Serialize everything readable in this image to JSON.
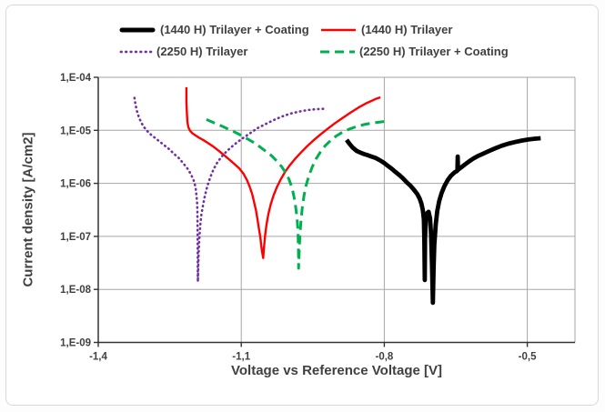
{
  "figure": {
    "background": "#ffffff",
    "border_color": "#d9d9d9",
    "gridline_color": "#a6a6a6",
    "axis_color": "#333333",
    "text_color": "#404040"
  },
  "chart_data": {
    "type": "line",
    "title": "",
    "xlabel": "Voltage vs Reference Voltage [V]",
    "ylabel": "Current density [A/cm2]",
    "x_axis": {
      "min": -1.4,
      "max": -0.4,
      "tick_values": [
        -1.4,
        -1.1,
        -0.8,
        -0.5
      ],
      "tick_labels": [
        "-1,4",
        "-1,1",
        "-0,8",
        "-0,5"
      ],
      "decimal_style": "comma"
    },
    "y_axis": {
      "scale": "log",
      "min": 1e-09,
      "max": 0.0001,
      "tick_values": [
        0.0001,
        1e-05,
        1e-06,
        1e-07,
        1e-08,
        1e-09
      ],
      "tick_labels": [
        "1,E-04",
        "1,E-05",
        "1,E-06",
        "1,E-07",
        "1,E-08",
        "1,E-09"
      ]
    },
    "grid": true,
    "legend_position": "top",
    "series": [
      {
        "name": "(1440 H) Trilayer + Coating",
        "color": "#000000",
        "dash": "solid",
        "width": 4.8,
        "points": [
          [
            -0.879,
            6.6e-06
          ],
          [
            -0.873,
            5.6e-06
          ],
          [
            -0.866,
            4.7e-06
          ],
          [
            -0.858,
            4.1e-06
          ],
          [
            -0.85,
            3.8e-06
          ],
          [
            -0.842,
            3.55e-06
          ],
          [
            -0.835,
            3.4e-06
          ],
          [
            -0.827,
            3.2e-06
          ],
          [
            -0.818,
            3e-06
          ],
          [
            -0.81,
            2.75e-06
          ],
          [
            -0.801,
            2.45e-06
          ],
          [
            -0.793,
            2.15e-06
          ],
          [
            -0.785,
            1.9e-06
          ],
          [
            -0.777,
            1.65e-06
          ],
          [
            -0.769,
            1.45e-06
          ],
          [
            -0.761,
            1.25e-06
          ],
          [
            -0.753,
            1.05e-06
          ],
          [
            -0.745,
            9e-07
          ],
          [
            -0.738,
            7.6e-07
          ],
          [
            -0.731,
            6.3e-07
          ],
          [
            -0.726,
            5.2e-07
          ],
          [
            -0.722,
            4.1e-07
          ],
          [
            -0.719,
            3.1e-07
          ],
          [
            -0.717,
            2.1e-07
          ],
          [
            -0.716,
            9e-08
          ],
          [
            -0.715,
            1.5e-08
          ],
          [
            -0.7145,
            9e-08
          ],
          [
            -0.713,
            2e-07
          ],
          [
            -0.71,
            2.75e-07
          ],
          [
            -0.707,
            2.9e-07
          ],
          [
            -0.704,
            2.2e-07
          ],
          [
            -0.702,
            1.1e-07
          ],
          [
            -0.7,
            3e-08
          ],
          [
            -0.698,
            5.6e-09
          ],
          [
            -0.6965,
            2.5e-08
          ],
          [
            -0.695,
            7e-08
          ],
          [
            -0.692,
            1.7e-07
          ],
          [
            -0.689,
            3e-07
          ],
          [
            -0.685,
            4.6e-07
          ],
          [
            -0.68,
            6.5e-07
          ],
          [
            -0.674,
            8.8e-07
          ],
          [
            -0.667,
            1.15e-06
          ],
          [
            -0.66,
            1.4e-06
          ],
          [
            -0.653,
            1.6e-06
          ],
          [
            -0.648,
            1.7e-06
          ],
          [
            -0.6465,
            1.75e-06
          ],
          [
            -0.646,
            3.2e-06
          ],
          [
            -0.6455,
            1.8e-06
          ],
          [
            -0.642,
            1.9e-06
          ],
          [
            -0.637,
            2.05e-06
          ],
          [
            -0.63,
            2.3e-06
          ],
          [
            -0.622,
            2.6e-06
          ],
          [
            -0.613,
            2.95e-06
          ],
          [
            -0.603,
            3.3e-06
          ],
          [
            -0.592,
            3.65e-06
          ],
          [
            -0.58,
            4.1e-06
          ],
          [
            -0.567,
            4.6e-06
          ],
          [
            -0.554,
            5.1e-06
          ],
          [
            -0.54,
            5.6e-06
          ],
          [
            -0.526,
            6e-06
          ],
          [
            -0.512,
            6.4e-06
          ],
          [
            -0.498,
            6.7e-06
          ],
          [
            -0.484,
            6.95e-06
          ],
          [
            -0.472,
            7.1e-06
          ]
        ]
      },
      {
        "name": "(1440 H) Trilayer",
        "color": "#ff0000",
        "dash": "solid",
        "width": 2.4,
        "points": [
          [
            -1.215,
            6.5e-05
          ],
          [
            -1.215,
            3.4e-05
          ],
          [
            -1.214,
            2e-05
          ],
          [
            -1.213,
            1.45e-05
          ],
          [
            -1.211,
            1.15e-05
          ],
          [
            -1.208,
            1e-05
          ],
          [
            -1.203,
            8.9e-06
          ],
          [
            -1.196,
            8e-06
          ],
          [
            -1.188,
            7.2e-06
          ],
          [
            -1.179,
            6.5e-06
          ],
          [
            -1.169,
            5.7e-06
          ],
          [
            -1.158,
            4.9e-06
          ],
          [
            -1.147,
            4.1e-06
          ],
          [
            -1.136,
            3.4e-06
          ],
          [
            -1.125,
            2.8e-06
          ],
          [
            -1.114,
            2.3e-06
          ],
          [
            -1.104,
            1.9e-06
          ],
          [
            -1.095,
            1.5e-06
          ],
          [
            -1.088,
            1.15e-06
          ],
          [
            -1.082,
            8.5e-07
          ],
          [
            -1.077,
            6.2e-07
          ],
          [
            -1.073,
            4.4e-07
          ],
          [
            -1.069,
            3.1e-07
          ],
          [
            -1.066,
            2.1e-07
          ],
          [
            -1.063,
            1.4e-07
          ],
          [
            -1.06,
            9.5e-08
          ],
          [
            -1.058,
            6.6e-08
          ],
          [
            -1.056,
            4.9e-08
          ],
          [
            -1.054,
            3.9e-08
          ],
          [
            -1.0525,
            6e-08
          ],
          [
            -1.05,
            1.05e-07
          ],
          [
            -1.047,
            1.7e-07
          ],
          [
            -1.043,
            2.7e-07
          ],
          [
            -1.038,
            4.1e-07
          ],
          [
            -1.032,
            6e-07
          ],
          [
            -1.025,
            8.6e-07
          ],
          [
            -1.017,
            1.2e-06
          ],
          [
            -1.008,
            1.65e-06
          ],
          [
            -0.998,
            2.2e-06
          ],
          [
            -0.987,
            2.9e-06
          ],
          [
            -0.975,
            3.8e-06
          ],
          [
            -0.962,
            5e-06
          ],
          [
            -0.949,
            6.4e-06
          ],
          [
            -0.935,
            8.2e-06
          ],
          [
            -0.92,
            1.05e-05
          ],
          [
            -0.904,
            1.35e-05
          ],
          [
            -0.888,
            1.7e-05
          ],
          [
            -0.871,
            2.15e-05
          ],
          [
            -0.854,
            2.7e-05
          ],
          [
            -0.836,
            3.3e-05
          ],
          [
            -0.818,
            3.9e-05
          ],
          [
            -0.808,
            4.2e-05
          ]
        ]
      },
      {
        "name": "(2250 H) Trilayer",
        "color": "#7030a0",
        "dash": "dotted",
        "width": 2.6,
        "points": [
          [
            -1.324,
            4.1e-05
          ],
          [
            -1.322,
            3.1e-05
          ],
          [
            -1.319,
            2.35e-05
          ],
          [
            -1.315,
            1.8e-05
          ],
          [
            -1.31,
            1.4e-05
          ],
          [
            -1.304,
            1.15e-05
          ],
          [
            -1.297,
            9.6e-06
          ],
          [
            -1.289,
            8.2e-06
          ],
          [
            -1.28,
            7.1e-06
          ],
          [
            -1.271,
            6.1e-06
          ],
          [
            -1.261,
            5.2e-06
          ],
          [
            -1.251,
            4.4e-06
          ],
          [
            -1.241,
            3.6e-06
          ],
          [
            -1.231,
            3e-06
          ],
          [
            -1.222,
            2.4e-06
          ],
          [
            -1.213,
            1.9e-06
          ],
          [
            -1.206,
            1.5e-06
          ],
          [
            -1.2,
            1.15e-06
          ],
          [
            -1.196,
            8.5e-07
          ],
          [
            -1.194,
            6e-07
          ],
          [
            -1.1925,
            4.2e-07
          ],
          [
            -1.192,
            2.8e-07
          ],
          [
            -1.1918,
            1.8e-07
          ],
          [
            -1.1916,
            1.1e-07
          ],
          [
            -1.1914,
            6.5e-08
          ],
          [
            -1.1912,
            3.5e-08
          ],
          [
            -1.191,
            1.4e-08
          ],
          [
            -1.1895,
            4.5e-08
          ],
          [
            -1.188,
            9e-08
          ],
          [
            -1.186,
            1.6e-07
          ],
          [
            -1.1835,
            2.6e-07
          ],
          [
            -1.18,
            4e-07
          ],
          [
            -1.176,
            6e-07
          ],
          [
            -1.171,
            9e-07
          ],
          [
            -1.165,
            1.3e-06
          ],
          [
            -1.158,
            1.85e-06
          ],
          [
            -1.15,
            2.5e-06
          ],
          [
            -1.141,
            3.2e-06
          ],
          [
            -1.131,
            4e-06
          ],
          [
            -1.12,
            4.9e-06
          ],
          [
            -1.108,
            6e-06
          ],
          [
            -1.095,
            7.3e-06
          ],
          [
            -1.081,
            8.9e-06
          ],
          [
            -1.066,
            1.1e-05
          ],
          [
            -1.05,
            1.3e-05
          ],
          [
            -1.033,
            1.55e-05
          ],
          [
            -1.016,
            1.8e-05
          ],
          [
            -0.998,
            2.05e-05
          ],
          [
            -0.98,
            2.25e-05
          ],
          [
            -0.962,
            2.4e-05
          ],
          [
            -0.944,
            2.5e-05
          ],
          [
            -0.926,
            2.55e-05
          ]
        ]
      },
      {
        "name": "(2250 H) Trilayer + Coating",
        "color": "#00b050",
        "dash": "dashed",
        "width": 3,
        "points": [
          [
            -1.173,
            1.6e-05
          ],
          [
            -1.162,
            1.45e-05
          ],
          [
            -1.15,
            1.3e-05
          ],
          [
            -1.138,
            1.17e-05
          ],
          [
            -1.126,
            1.04e-05
          ],
          [
            -1.113,
            9.2e-06
          ],
          [
            -1.1,
            8e-06
          ],
          [
            -1.087,
            6.9e-06
          ],
          [
            -1.074,
            5.9e-06
          ],
          [
            -1.061,
            4.9e-06
          ],
          [
            -1.048,
            4e-06
          ],
          [
            -1.036,
            3.3e-06
          ],
          [
            -1.025,
            2.6e-06
          ],
          [
            -1.015,
            2.05e-06
          ],
          [
            -1.007,
            1.6e-06
          ],
          [
            -1.0,
            1.2e-06
          ],
          [
            -0.994,
            8.6e-07
          ],
          [
            -0.99,
            6e-07
          ],
          [
            -0.987,
            4.2e-07
          ],
          [
            -0.9845,
            2.9e-07
          ],
          [
            -0.9825,
            1.9e-07
          ],
          [
            -0.9812,
            1.25e-07
          ],
          [
            -0.9805,
            8e-08
          ],
          [
            -0.98,
            4.5e-08
          ],
          [
            -0.9797,
            2.5e-08
          ],
          [
            -0.978,
            6.5e-08
          ],
          [
            -0.9765,
            1.2e-07
          ],
          [
            -0.9745,
            2.1e-07
          ],
          [
            -0.972,
            3.5e-07
          ],
          [
            -0.9685,
            5.8e-07
          ],
          [
            -0.964,
            9.2e-07
          ],
          [
            -0.958,
            1.4e-06
          ],
          [
            -0.951,
            2.05e-06
          ],
          [
            -0.943,
            2.9e-06
          ],
          [
            -0.934,
            3.9e-06
          ],
          [
            -0.924,
            5.1e-06
          ],
          [
            -0.913,
            6.4e-06
          ],
          [
            -0.901,
            7.8e-06
          ],
          [
            -0.888,
            9.2e-06
          ],
          [
            -0.874,
            1.05e-05
          ],
          [
            -0.859,
            1.17e-05
          ],
          [
            -0.843,
            1.28e-05
          ],
          [
            -0.826,
            1.37e-05
          ],
          [
            -0.808,
            1.44e-05
          ],
          [
            -0.789,
            1.5e-05
          ]
        ]
      }
    ]
  }
}
